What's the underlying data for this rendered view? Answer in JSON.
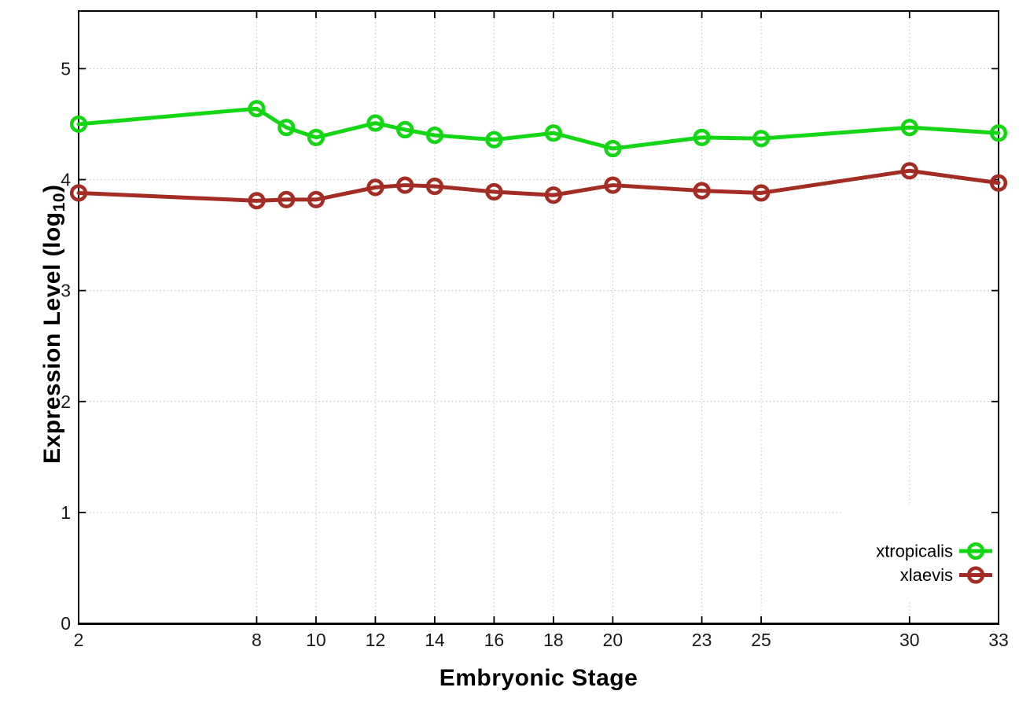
{
  "figure": {
    "background": "#ffffff",
    "axis_color": "#000000",
    "grid_color": "#c8c8c8",
    "tick_label_color": "#1a1a1a"
  },
  "chart_data": {
    "type": "line",
    "title": "",
    "xlabel": "Embryonic Stage",
    "ylabel": "Expression Level (log10)",
    "ylabel_parts": {
      "base": "Expression Level (log",
      "subscript": "10",
      "close": ")"
    },
    "xlim": [
      2,
      33
    ],
    "ylim": [
      0,
      5.52
    ],
    "xticks": [
      2,
      8,
      10,
      12,
      14,
      16,
      18,
      20,
      23,
      25,
      30,
      33
    ],
    "yticks": [
      0,
      1,
      2,
      3,
      4,
      5
    ],
    "grid": "dotted",
    "legend_position": "inside-bottom-right",
    "x": [
      2,
      8,
      9,
      10,
      12,
      13,
      14,
      16,
      18,
      20,
      23,
      25,
      30,
      33
    ],
    "series": [
      {
        "name": "xtropicalis",
        "color": "#15d615",
        "marker": "open-circle",
        "values": [
          4.5,
          4.64,
          4.47,
          4.38,
          4.51,
          4.45,
          4.4,
          4.36,
          4.42,
          4.28,
          4.38,
          4.37,
          4.47,
          4.42
        ]
      },
      {
        "name": "xlaevis",
        "color": "#a32c24",
        "marker": "open-circle",
        "values": [
          3.88,
          3.81,
          3.82,
          3.82,
          3.93,
          3.95,
          3.94,
          3.89,
          3.86,
          3.95,
          3.9,
          3.88,
          4.08,
          3.97
        ]
      }
    ]
  }
}
